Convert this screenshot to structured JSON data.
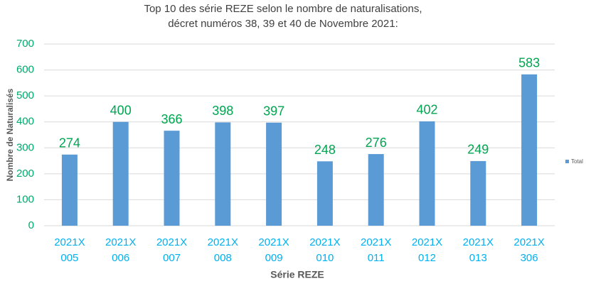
{
  "chart_data": {
    "type": "bar",
    "title": "Top 10 des série REZE selon le nombre de naturalisations,",
    "subtitle": "décret numéros 38, 39 et 40 de Novembre 2021:",
    "x_label": "Série REZE",
    "y_label": "Nombre de Naturalisés",
    "categories": [
      "2021X 005",
      "2021X 006",
      "2021X 007",
      "2021X 008",
      "2021X 009",
      "2021X 010",
      "2021X 011",
      "2021X 012",
      "2021X 013",
      "2021X 306"
    ],
    "series": [
      {
        "name": "Total",
        "color": "#5b9bd5",
        "values": [
          274,
          400,
          366,
          398,
          397,
          248,
          276,
          402,
          249,
          583
        ]
      }
    ],
    "ylim": [
      0,
      700
    ],
    "yticks": [
      0,
      100,
      200,
      300,
      400,
      500,
      600,
      700
    ],
    "grid": true,
    "legend": "right"
  }
}
